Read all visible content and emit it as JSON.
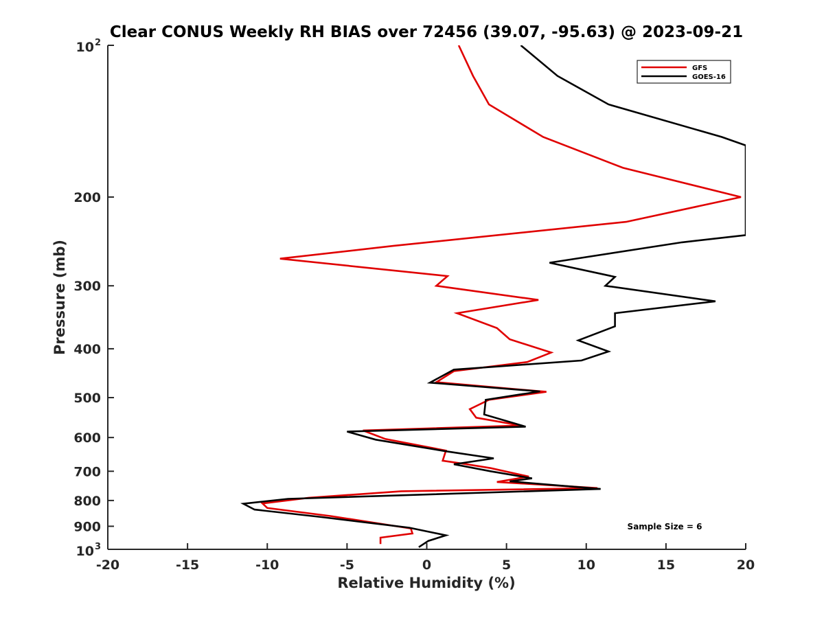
{
  "chart_data": {
    "type": "line",
    "title": "Clear CONUS Weekly RH BIAS over 72456 (39.07, -95.63) @ 2023-09-21",
    "xlabel": "Relative Humidity (%)",
    "ylabel": "Pressure (mb)",
    "xlim": [
      -20,
      20
    ],
    "ylim": [
      100,
      1000
    ],
    "yscale": "log",
    "y_reversed": true,
    "x_ticks": [
      -20,
      -15,
      -10,
      -5,
      0,
      5,
      10,
      15,
      20
    ],
    "x_tick_labels": [
      "-20",
      "-15",
      "-10",
      "-5",
      "0",
      "5",
      "10",
      "15",
      "20"
    ],
    "y_ticks": [
      {
        "value": 100,
        "label": "10",
        "sup": "2"
      },
      {
        "value": 200,
        "label": "200",
        "sup": ""
      },
      {
        "value": 300,
        "label": "300",
        "sup": ""
      },
      {
        "value": 400,
        "label": "400",
        "sup": ""
      },
      {
        "value": 500,
        "label": "500",
        "sup": ""
      },
      {
        "value": 600,
        "label": "600",
        "sup": ""
      },
      {
        "value": 700,
        "label": "700",
        "sup": ""
      },
      {
        "value": 800,
        "label": "800",
        "sup": ""
      },
      {
        "value": 900,
        "label": "900",
        "sup": ""
      },
      {
        "value": 1000,
        "label": "10",
        "sup": "3"
      }
    ],
    "legend_position": "top-right",
    "annotation": "Sample Size = 6",
    "series": [
      {
        "name": "GFS",
        "color": "#e00000",
        "points": [
          [
            2.0,
            100
          ],
          [
            2.9,
            115
          ],
          [
            3.9,
            131
          ],
          [
            7.3,
            152
          ],
          [
            12.3,
            175
          ],
          [
            19.7,
            200
          ],
          [
            12.5,
            224
          ],
          [
            -2.1,
            250
          ],
          [
            -9.2,
            265
          ],
          [
            1.3,
            287
          ],
          [
            0.6,
            300
          ],
          [
            7.0,
            320
          ],
          [
            1.9,
            340
          ],
          [
            4.4,
            364
          ],
          [
            5.2,
            383
          ],
          [
            7.8,
            407
          ],
          [
            6.3,
            425
          ],
          [
            1.7,
            443
          ],
          [
            0.6,
            466
          ],
          [
            7.5,
            487
          ],
          [
            3.9,
            505
          ],
          [
            2.7,
            527
          ],
          [
            3.1,
            548
          ],
          [
            5.9,
            568
          ],
          [
            -4.0,
            581
          ],
          [
            -2.6,
            604
          ],
          [
            1.2,
            637
          ],
          [
            1.0,
            667
          ],
          [
            2.4,
            677
          ],
          [
            4.0,
            690
          ],
          [
            6.4,
            717
          ],
          [
            4.4,
            735
          ],
          [
            10.7,
            756
          ],
          [
            -1.6,
            767
          ],
          [
            -7.4,
            790
          ],
          [
            -10.3,
            811
          ],
          [
            -10.0,
            828
          ],
          [
            -6.0,
            859
          ],
          [
            -1.0,
            909
          ],
          [
            -0.9,
            930
          ],
          [
            -2.9,
            948
          ],
          [
            -2.9,
            976
          ]
        ]
      },
      {
        "name": "GOES-16",
        "color": "#000000",
        "points": [
          [
            5.9,
            100
          ],
          [
            8.2,
            115
          ],
          [
            11.4,
            131
          ],
          [
            18.5,
            152
          ],
          [
            20.0,
            158
          ],
          [
            20.0,
            238
          ],
          [
            16.0,
            246
          ],
          [
            7.7,
            270
          ],
          [
            11.8,
            288
          ],
          [
            11.2,
            300
          ],
          [
            18.1,
            322
          ],
          [
            11.8,
            340
          ],
          [
            11.8,
            361
          ],
          [
            9.5,
            385
          ],
          [
            11.4,
            405
          ],
          [
            9.7,
            422
          ],
          [
            1.7,
            440
          ],
          [
            0.2,
            467
          ],
          [
            7.1,
            486
          ],
          [
            3.7,
            505
          ],
          [
            3.6,
            540
          ],
          [
            6.2,
            571
          ],
          [
            -5.0,
            584
          ],
          [
            -3.2,
            606
          ],
          [
            1.2,
            639
          ],
          [
            4.2,
            660
          ],
          [
            1.7,
            678
          ],
          [
            4.0,
            700
          ],
          [
            6.6,
            723
          ],
          [
            5.2,
            733
          ],
          [
            10.9,
            759
          ],
          [
            -8.7,
            794
          ],
          [
            -11.5,
            812
          ],
          [
            -10.8,
            834
          ],
          [
            -6.6,
            863
          ],
          [
            -1.1,
            906
          ],
          [
            1.2,
            938
          ],
          [
            0.1,
            962
          ],
          [
            -0.5,
            990
          ]
        ]
      }
    ]
  }
}
